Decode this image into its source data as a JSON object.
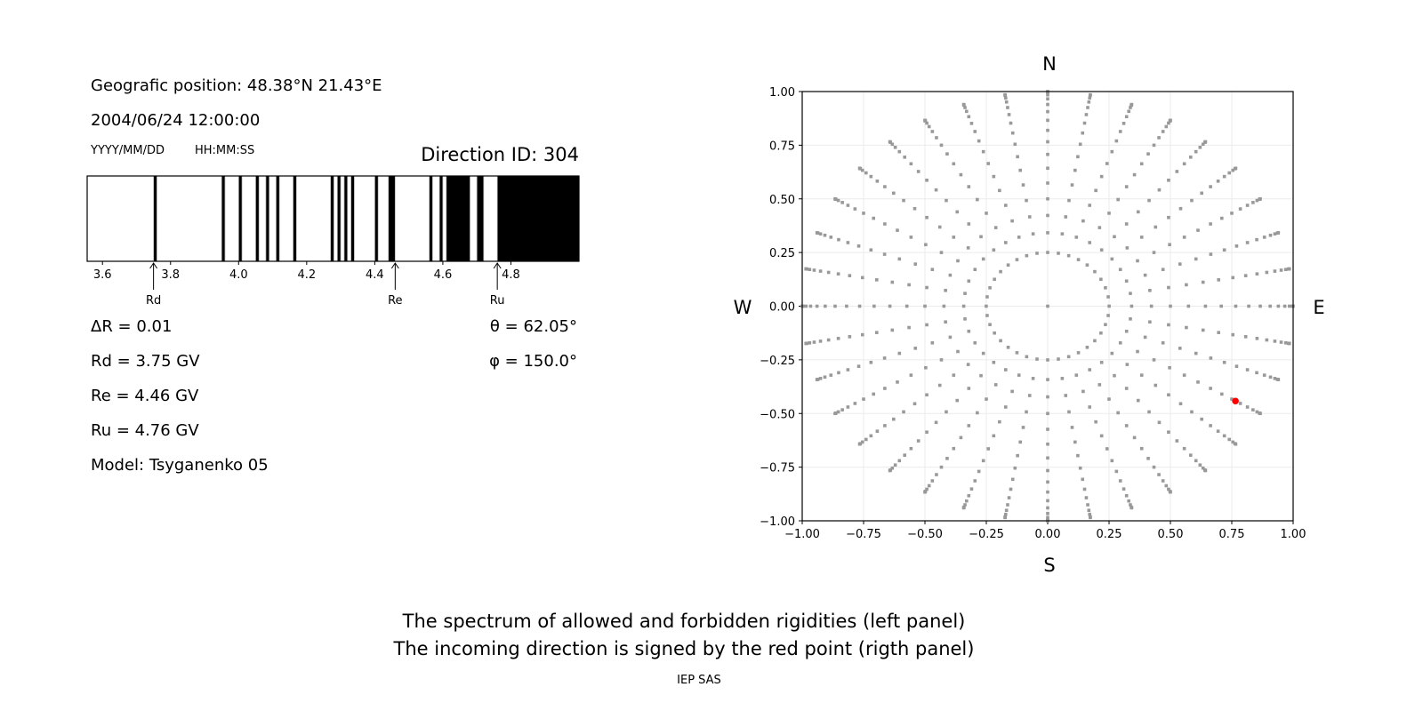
{
  "left_panel": {
    "position": "Geografic position: 48.38°N 21.43°E",
    "datetime": "2004/06/24 12:00:00",
    "date_format": "YYYY/MM/DD",
    "time_format": "HH:MM:SS",
    "direction_id": "Direction ID: 304",
    "delta_r": "ΔR = 0.01",
    "rd": "Rd = 3.75 GV",
    "re": "Re = 4.46 GV",
    "ru": "Ru = 4.76 GV",
    "model": "Model: Tsyganenko 05",
    "theta": "θ = 62.05°",
    "phi": "φ = 150.0°"
  },
  "right_panel": {
    "north": "N",
    "south": "S",
    "west": "W",
    "east": "E"
  },
  "caption": {
    "line1": "The spectrum of allowed and forbidden rigidities (left panel)",
    "line2": "The incoming direction is signed by the red point (rigth panel)",
    "credit": "IEP SAS"
  },
  "chart_data": [
    {
      "type": "bar",
      "description_kind": "rigidity spectrum; black = forbidden, white = allowed",
      "xlim": [
        3.555,
        5.0
      ],
      "xticks": [
        "3.6",
        "3.8",
        "4.0",
        "4.2",
        "4.4",
        "4.6",
        "4.8"
      ],
      "forbidden_intervals": [
        [
          3.75,
          3.76
        ],
        [
          3.95,
          3.96
        ],
        [
          4.0,
          4.01
        ],
        [
          4.05,
          4.06
        ],
        [
          4.08,
          4.09
        ],
        [
          4.11,
          4.12
        ],
        [
          4.16,
          4.17
        ],
        [
          4.27,
          4.28
        ],
        [
          4.29,
          4.3
        ],
        [
          4.31,
          4.32
        ],
        [
          4.33,
          4.34
        ],
        [
          4.4,
          4.41
        ],
        [
          4.44,
          4.46
        ],
        [
          4.56,
          4.57
        ],
        [
          4.59,
          4.6
        ],
        [
          4.61,
          4.68
        ],
        [
          4.7,
          4.72
        ],
        [
          4.76,
          5.0
        ]
      ],
      "markers": [
        {
          "label": "Rd",
          "value": 3.75
        },
        {
          "label": "Re",
          "value": 4.46
        },
        {
          "label": "Ru",
          "value": 4.76
        }
      ],
      "colors": {
        "forbidden": "#000000",
        "allowed": "#ffffff"
      }
    },
    {
      "type": "scatter",
      "xlim": [
        -1.0,
        1.0
      ],
      "ylim": [
        -1.0,
        1.0
      ],
      "xticks": [
        "−1.00",
        "−0.75",
        "−0.50",
        "−0.25",
        "0.00",
        "0.25",
        "0.50",
        "0.75",
        "1.00"
      ],
      "yticks": [
        "−1.00",
        "−0.75",
        "−0.50",
        "−0.25",
        "0.00",
        "0.25",
        "0.50",
        "0.75",
        "1.00"
      ],
      "grid": true,
      "direction_grid": {
        "phi_step_deg": 10,
        "ring_theta_deg": 14.5,
        "spoke_theta_deg": [
          20,
          25,
          30,
          35,
          40,
          45,
          50,
          55,
          60,
          65,
          70,
          75,
          80,
          85,
          87.5,
          90
        ],
        "center_point": [
          0,
          0
        ]
      },
      "highlight": {
        "theta_deg": 62.05,
        "phi_deg": 150.0,
        "x": 0.765,
        "y": -0.442
      },
      "colors": {
        "grid_points": "#999999",
        "highlight": "#ff0000"
      }
    }
  ]
}
